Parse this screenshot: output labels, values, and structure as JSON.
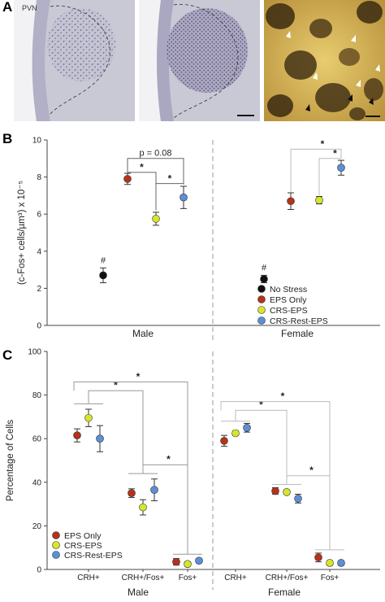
{
  "panels": {
    "A": {
      "letter": "A",
      "region_label": "PVN"
    },
    "B": {
      "letter": "B"
    },
    "C": {
      "letter": "C"
    }
  },
  "colors": {
    "No Stress": "#111111",
    "EPS Only": "#b5321b",
    "CRS-EPS": "#d6e62a",
    "CRS-Rest-EPS": "#5b8fd9",
    "micro_bg": "#bfbfcf",
    "micro_stain": "#6a5a86",
    "dab_bg": "#d6b55a",
    "dab_dark": "#3b2a12"
  },
  "chart_data": [
    {
      "type": "scatter",
      "ylabel": "(c-Fos+ cells/µm³) x 10⁻⁵",
      "ylim": [
        0,
        10
      ],
      "yticks": [
        0,
        2,
        4,
        6,
        8,
        10
      ],
      "groups": [
        "Male",
        "Female"
      ],
      "series": [
        {
          "name": "No Stress",
          "values": [
            2.7,
            2.5
          ],
          "errors": [
            0.4,
            0.2
          ]
        },
        {
          "name": "EPS Only",
          "values": [
            7.9,
            6.7
          ],
          "errors": [
            0.3,
            0.45
          ]
        },
        {
          "name": "CRS-EPS",
          "values": [
            5.75,
            6.75
          ],
          "errors": [
            0.35,
            0.2
          ]
        },
        {
          "name": "CRS-Rest-EPS",
          "values": [
            6.9,
            8.5
          ],
          "errors": [
            0.6,
            0.4
          ]
        }
      ],
      "annotations": {
        "p_value": "p = 0.08",
        "star": "*",
        "hash": "#"
      },
      "legend": "bottom-right"
    },
    {
      "type": "scatter",
      "ylabel": "Percentage of Cells",
      "ylim": [
        0,
        100
      ],
      "yticks": [
        0,
        20,
        40,
        60,
        80,
        100
      ],
      "groups": [
        "Male",
        "Female"
      ],
      "categories": [
        "CRH+",
        "CRH+/Fos+",
        "Fos+"
      ],
      "series": [
        {
          "name": "EPS Only",
          "male": [
            61.5,
            35,
            3.5
          ],
          "female": [
            59,
            36,
            5.5
          ],
          "male_err": [
            3,
            2,
            1.5
          ],
          "female_err": [
            2.5,
            1.5,
            2
          ]
        },
        {
          "name": "CRS-EPS",
          "male": [
            69.5,
            28.5,
            2.5
          ],
          "female": [
            62.5,
            35.5,
            3
          ],
          "male_err": [
            4,
            3.5,
            1
          ],
          "female_err": [
            1,
            1,
            1
          ]
        },
        {
          "name": "CRS-Rest-EPS",
          "male": [
            60,
            36.5,
            4
          ],
          "female": [
            65,
            32.5,
            3
          ],
          "male_err": [
            6,
            5,
            1
          ],
          "female_err": [
            2,
            2,
            1
          ]
        }
      ],
      "annotations": {
        "star": "*"
      },
      "legend": "bottom-left"
    }
  ]
}
